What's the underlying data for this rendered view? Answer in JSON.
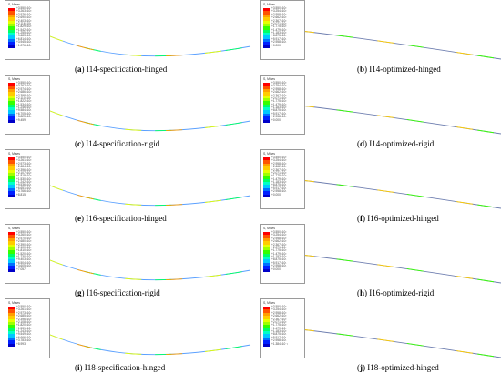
{
  "panels": [
    {
      "letter": "a",
      "name": "I14-specification-hinged",
      "legend_title": "S, Mises",
      "values": [
        "+3.550×10²",
        "+3.263×10²",
        "+2.976×10²",
        "+2.690×10²",
        "+2.403×10²",
        "+2.116×10²",
        "+1.829×10²",
        "+1.542×10²",
        "+1.255×10²",
        "+9.683×10¹",
        "+6.814×10¹",
        "+3.945×10¹",
        "+1.076×10¹"
      ]
    },
    {
      "letter": "b",
      "name": "I14-optimized-hinged",
      "legend_title": "S, Mises",
      "values": [
        "+3.550×10²",
        "+3.254×10²",
        "+2.958×10²",
        "+2.662×10²",
        "+2.367×10²",
        "+2.071×10²",
        "+1.775×10²",
        "+1.479×10²",
        "+1.183×10²",
        "+8.875×10¹",
        "+5.917×10¹",
        "+2.958×10¹",
        "+0.000"
      ]
    },
    {
      "letter": "c",
      "name": "I14-specification-rigid",
      "legend_title": "S, Mises",
      "values": [
        "+3.550×10²",
        "+3.262×10²",
        "+2.974×10²",
        "+2.686×10²",
        "+2.398×10²",
        "+2.110×10²",
        "+1.822×10²",
        "+1.534×10²",
        "+1.246×10²",
        "+9.584×10¹",
        "+6.705×10¹",
        "+3.825×10¹",
        "+9.459"
      ]
    },
    {
      "letter": "d",
      "name": "I14-optimized-rigid",
      "legend_title": "S, Mises",
      "values": [
        "+3.550×10²",
        "+3.254×10²",
        "+2.958×10²",
        "+2.662×10²",
        "+2.367×10²",
        "+2.071×10²",
        "+1.775×10²",
        "+1.479×10²",
        "+1.183×10²",
        "+8.875×10¹",
        "+5.917×10¹",
        "+2.958×10¹",
        "+0.000"
      ]
    },
    {
      "letter": "e",
      "name": "I16-specification-hinged",
      "legend_title": "S, Mises",
      "values": [
        "+3.550×10²",
        "+3.261×10²",
        "+2.973×10²",
        "+2.684×10²",
        "+2.396×10²",
        "+2.107×10²",
        "+1.819×10²",
        "+1.530×10²",
        "+1.242×10²",
        "+9.536×10¹",
        "+6.651×10¹",
        "+3.766×10¹",
        "+8.815"
      ]
    },
    {
      "letter": "f",
      "name": "I16-optimized-hinged",
      "legend_title": "S, Mises",
      "values": [
        "+3.550×10²",
        "+3.254×10²",
        "+2.958×10²",
        "+2.662×10²",
        "+2.367×10²",
        "+2.071×10²",
        "+1.775×10²",
        "+1.479×10²",
        "+1.183×10²",
        "+8.875×10¹",
        "+5.917×10¹",
        "+2.958×10¹",
        "+0.000"
      ]
    },
    {
      "letter": "g",
      "name": "I16-specification-rigid",
      "legend_title": "S, Mises",
      "values": [
        "+3.550×10²",
        "+3.260×10²",
        "+2.970×10²",
        "+2.680×10²",
        "+2.390×10²",
        "+2.100×10²",
        "+1.810×10²",
        "+1.520×10²",
        "+1.230×10²",
        "+9.403×10¹",
        "+6.504×10¹",
        "+3.605×10¹",
        "+7.057"
      ]
    },
    {
      "letter": "h",
      "name": "I16-optimized-rigid",
      "legend_title": "S, Mises",
      "values": [
        "+3.550×10²",
        "+3.254×10²",
        "+2.958×10²",
        "+2.662×10²",
        "+2.367×10²",
        "+2.071×10²",
        "+1.775×10²",
        "+1.479×10²",
        "+1.183×10²",
        "+8.875×10¹",
        "+5.917×10¹",
        "+2.958×10¹",
        "+0.000"
      ]
    },
    {
      "letter": "i",
      "name": "I18-specification-hinged",
      "legend_title": "S, Mises",
      "values": [
        "+3.550×10²",
        "+3.261×10²",
        "+2.973×10²",
        "+2.685×10²",
        "+2.396×10²",
        "+2.108×10²",
        "+1.820×10²",
        "+1.531×10²",
        "+1.243×10²",
        "+9.549×10¹",
        "+6.666×10¹",
        "+3.783×10¹",
        "+8.993"
      ]
    },
    {
      "letter": "j",
      "name": "I18-optimized-hinged",
      "legend_title": "S, Mises",
      "values": [
        "+3.550×10²",
        "+3.254×10²",
        "+2.958×10²",
        "+2.662×10²",
        "+2.367×10²",
        "+2.071×10²",
        "+1.775×10²",
        "+1.479×10²",
        "+1.183×10²",
        "+8.875×10¹",
        "+5.917×10¹",
        "+2.958×10¹",
        "+1.384×10⁻¹"
      ]
    }
  ],
  "contour_colors": [
    "#ff0000",
    "#ff5400",
    "#ff9f00",
    "#ffcc00",
    "#e6ff00",
    "#a0ff00",
    "#35ff00",
    "#00ff66",
    "#00ffc8",
    "#00c8ff",
    "#0070ff",
    "#0020ff",
    "#0000c8"
  ],
  "beam_colors": {
    "specification": "#5aa0ff",
    "optimized": "#6f7fb0"
  }
}
